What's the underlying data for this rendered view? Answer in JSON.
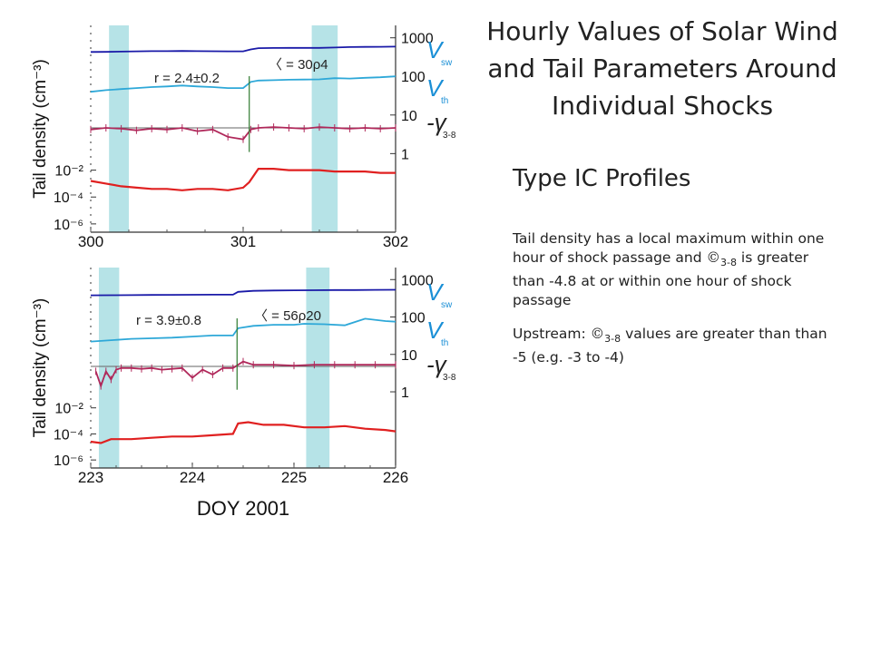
{
  "title": "Hourly Values of Solar Wind and Tail Parameters Around Individual Shocks",
  "subtitle": "Type IC Profiles",
  "description": {
    "p1_pre": "Tail density has a local maximum within one hour of shock passage and",
    "p1_symbol": "©",
    "p1_sub": "3-8",
    "p1_post": "is greater than -4.8 at or within one hour of shock passage",
    "p2_pre": "Upstream:",
    "p2_symbol": "©",
    "p2_sub": "3-8",
    "p2_post": "values are greater than than -5 (e.g. -3 to -4)"
  },
  "colors": {
    "vsw": "#1a1aa8",
    "vth": "#2ea8d8",
    "gamma": "#b0285a",
    "tail": "#e02020",
    "shade": "#aee0e4",
    "shock": "#2f7a2f",
    "label_blue": "#1a8fd6"
  },
  "chart_data": [
    {
      "type": "line",
      "xlabel": "",
      "ylabel": "Tail density (cm⁻³)",
      "xlim": [
        300,
        302
      ],
      "xticks": [
        "300",
        "301",
        "302"
      ],
      "left_ticks": [
        "10⁻²",
        "10⁻⁴",
        "10⁻⁶"
      ],
      "right_ticks": [
        "1000",
        "100",
        "10",
        "1"
      ],
      "series_labels": [
        {
          "base": "V",
          "sub": "sw",
          "color": "vsw"
        },
        {
          "base": "V",
          "sub": "th",
          "color": "vth"
        },
        {
          "base": "-γ",
          "sub": "3-8",
          "color": "ink"
        }
      ],
      "annotations": [
        "r = 2.4±0.2",
        "〈 = 30ρ4"
      ],
      "shaded_x": [
        [
          300.12,
          300.25
        ],
        [
          301.45,
          301.62
        ]
      ],
      "shock_x": 301.04,
      "series": [
        {
          "name": "Vsw",
          "x": [
            300.0,
            300.1,
            300.2,
            300.3,
            300.4,
            300.5,
            300.6,
            300.7,
            300.8,
            300.9,
            301.0,
            301.05,
            301.1,
            301.2,
            301.3,
            301.4,
            301.5,
            301.6,
            301.7,
            301.8,
            301.9,
            302.0
          ],
          "values": [
            430,
            432,
            438,
            445,
            450,
            452,
            455,
            450,
            448,
            445,
            445,
            500,
            540,
            545,
            548,
            548,
            548,
            560,
            575,
            580,
            585,
            590
          ]
        },
        {
          "name": "Vth",
          "x": [
            300.0,
            300.1,
            300.2,
            300.3,
            300.4,
            300.5,
            300.6,
            300.7,
            300.8,
            300.9,
            301.0,
            301.05,
            301.1,
            301.2,
            301.3,
            301.4,
            301.5,
            301.6,
            301.7,
            301.8,
            301.9,
            302.0
          ],
          "values": [
            40,
            44,
            47,
            50,
            53,
            55,
            58,
            55,
            53,
            50,
            50,
            72,
            78,
            80,
            82,
            83,
            84,
            90,
            88,
            92,
            95,
            100
          ]
        },
        {
          "name": "-γ 3-8",
          "x": [
            300.0,
            300.1,
            300.2,
            300.3,
            300.4,
            300.5,
            300.6,
            300.7,
            300.8,
            300.9,
            301.0,
            301.05,
            301.1,
            301.2,
            301.3,
            301.4,
            301.5,
            301.6,
            301.7,
            301.8,
            301.9,
            302.0
          ],
          "values": [
            4.4,
            4.6,
            4.5,
            4.3,
            4.5,
            4.4,
            4.6,
            4.2,
            4.4,
            3.5,
            3.2,
            4.4,
            4.6,
            4.7,
            4.6,
            4.5,
            4.7,
            4.6,
            4.5,
            4.6,
            4.5,
            4.6
          ]
        },
        {
          "name": "Tail density",
          "x": [
            300.0,
            300.1,
            300.2,
            300.3,
            300.4,
            300.5,
            300.6,
            300.7,
            300.8,
            300.9,
            301.0,
            301.04,
            301.1,
            301.2,
            301.3,
            301.4,
            301.5,
            301.6,
            301.7,
            301.8,
            301.9,
            302.0
          ],
          "values": [
            -2.8,
            -3.0,
            -3.2,
            -3.3,
            -3.4,
            -3.4,
            -3.5,
            -3.4,
            -3.4,
            -3.5,
            -3.3,
            -2.9,
            -1.9,
            -1.9,
            -2.0,
            -2.0,
            -2.0,
            -2.1,
            -2.1,
            -2.1,
            -2.2,
            -2.2
          ]
        }
      ]
    },
    {
      "type": "line",
      "xlabel": "DOY 2001",
      "ylabel": "Tail density (cm⁻³)",
      "xlim": [
        223,
        226
      ],
      "xticks": [
        "223",
        "224",
        "225",
        "226"
      ],
      "left_ticks": [
        "10⁻²",
        "10⁻⁴",
        "10⁻⁶"
      ],
      "right_ticks": [
        "1000",
        "100",
        "10",
        "1"
      ],
      "series_labels": [
        {
          "base": "V",
          "sub": "sw",
          "color": "vsw"
        },
        {
          "base": "V",
          "sub": "th",
          "color": "vth"
        },
        {
          "base": "-γ",
          "sub": "3-8",
          "color": "ink"
        }
      ],
      "annotations": [
        "r = 3.9±0.8",
        "〈 = 56ρ20"
      ],
      "shaded_x": [
        [
          223.08,
          223.28
        ],
        [
          225.12,
          225.35
        ]
      ],
      "shock_x": 224.44,
      "series": [
        {
          "name": "Vsw",
          "x": [
            223.0,
            223.2,
            223.4,
            223.6,
            223.8,
            224.0,
            224.2,
            224.4,
            224.45,
            224.6,
            224.8,
            225.0,
            225.2,
            225.4,
            225.6,
            225.8,
            226.0
          ],
          "values": [
            380,
            382,
            385,
            388,
            390,
            392,
            395,
            395,
            470,
            500,
            510,
            515,
            520,
            525,
            525,
            530,
            535
          ]
        },
        {
          "name": "Vth",
          "x": [
            223.0,
            223.2,
            223.4,
            223.6,
            223.8,
            224.0,
            224.2,
            224.4,
            224.45,
            224.6,
            224.8,
            225.0,
            225.1,
            225.3,
            225.5,
            225.7,
            225.9,
            226.0
          ],
          "values": [
            22,
            24,
            26,
            27,
            28,
            30,
            32,
            32,
            50,
            58,
            62,
            62,
            66,
            64,
            60,
            90,
            78,
            75
          ]
        },
        {
          "name": "-γ 3-8",
          "x": [
            223.05,
            223.1,
            223.15,
            223.2,
            223.25,
            223.3,
            223.4,
            223.5,
            223.6,
            223.7,
            223.8,
            223.9,
            224.0,
            224.1,
            224.2,
            224.3,
            224.4,
            224.5,
            224.6,
            224.8,
            225.0,
            225.2,
            225.4,
            225.6,
            225.8,
            226.0
          ],
          "values": [
            4.0,
            2.2,
            4.0,
            3.0,
            4.2,
            4.4,
            4.4,
            4.3,
            4.4,
            4.2,
            4.3,
            4.4,
            3.2,
            4.2,
            3.6,
            4.4,
            4.4,
            5.2,
            4.8,
            4.8,
            4.7,
            4.8,
            4.8,
            4.8,
            4.8,
            4.8
          ]
        },
        {
          "name": "Tail density",
          "x": [
            223.0,
            223.1,
            223.2,
            223.4,
            223.6,
            223.8,
            224.0,
            224.2,
            224.4,
            224.45,
            224.55,
            224.7,
            224.9,
            225.1,
            225.3,
            225.5,
            225.7,
            225.9,
            226.0
          ],
          "values": [
            -4.6,
            -4.7,
            -4.4,
            -4.4,
            -4.3,
            -4.2,
            -4.2,
            -4.1,
            -4.0,
            -3.2,
            -3.1,
            -3.3,
            -3.3,
            -3.5,
            -3.5,
            -3.4,
            -3.6,
            -3.7,
            -3.8
          ]
        }
      ]
    }
  ]
}
